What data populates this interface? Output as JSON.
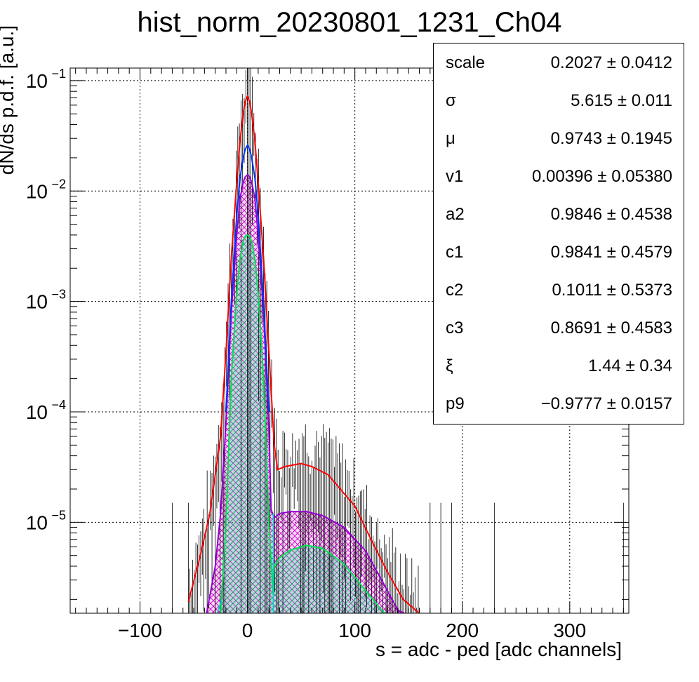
{
  "chart_data": {
    "type": "line",
    "title": "hist_norm_20230801_1231_Ch04",
    "xlabel": "s = adc - ped [adc channels]",
    "ylabel": "dN/ds p.d.f. [a.u.]",
    "xlim": [
      -165,
      355
    ],
    "ylim": [
      1.5e-06,
      0.13
    ],
    "yscale": "log",
    "grid": true,
    "x_ticks": [
      -100,
      0,
      100,
      200,
      300
    ],
    "x_tick_labels": [
      "−100",
      "0",
      "100",
      "200",
      "300"
    ],
    "y_ticks": [
      1e-05,
      0.0001,
      0.001,
      0.01,
      0.1
    ],
    "y_tick_labels": [
      {
        "base": "10",
        "exp": "−5"
      },
      {
        "base": "10",
        "exp": "−4"
      },
      {
        "base": "10",
        "exp": "−3"
      },
      {
        "base": "10",
        "exp": "−2"
      },
      {
        "base": "10",
        "exp": "−1"
      }
    ],
    "series": [
      {
        "color": "#ff0000",
        "fill": "none",
        "x": [
          -55,
          -45,
          -35,
          -25,
          -20,
          -15,
          -10,
          -7,
          -4,
          -2,
          0,
          2,
          4,
          7,
          10,
          15,
          20,
          25,
          28,
          35,
          50,
          60,
          75,
          100,
          115,
          130,
          145,
          160
        ],
        "y": [
          1.9e-06,
          4.5e-06,
          1.2e-05,
          6e-05,
          0.00035,
          0.0025,
          0.012,
          0.028,
          0.05,
          0.065,
          0.072,
          0.065,
          0.05,
          0.028,
          0.012,
          0.0025,
          0.00035,
          5e-05,
          3e-05,
          3.2e-05,
          3.4e-05,
          3.2e-05,
          2.7e-05,
          1.4e-05,
          7e-06,
          3.6e-06,
          2e-06,
          1.5e-06
        ]
      },
      {
        "color": "#9400d3",
        "fill": "#cc66cc",
        "x": [
          -38,
          -30,
          -25,
          -20,
          -15,
          -10,
          -7,
          -4,
          -2,
          0,
          2,
          4,
          7,
          10,
          15,
          20,
          22,
          25,
          30,
          40,
          55,
          70,
          90,
          110,
          125,
          140,
          146
        ],
        "y": [
          1.5e-06,
          4e-06,
          1.2e-05,
          8e-05,
          0.0008,
          0.004,
          0.0085,
          0.012,
          0.0135,
          0.014,
          0.0135,
          0.012,
          0.0085,
          0.004,
          0.0008,
          7e-05,
          1.3e-05,
          1.1e-05,
          1.2e-05,
          1.25e-05,
          1.25e-05,
          1.15e-05,
          9e-06,
          5.5e-06,
          3e-06,
          1.6e-06,
          1.5e-06
        ]
      },
      {
        "color": "#0033ff",
        "fill": "none",
        "x": [
          -20,
          -15,
          -10,
          -7,
          -4,
          -2,
          0,
          2,
          4,
          7,
          10,
          15,
          20
        ],
        "y": [
          0.0001,
          0.001,
          0.006,
          0.013,
          0.02,
          0.024,
          0.026,
          0.024,
          0.02,
          0.013,
          0.006,
          0.001,
          0.0001
        ]
      },
      {
        "color": "#00e050",
        "fill": "#33cc99",
        "x": [
          -25,
          -20,
          -15,
          -10,
          -7,
          -4,
          -2,
          0,
          2,
          4,
          7,
          10,
          15,
          20,
          24,
          25,
          30,
          40,
          55,
          70,
          90,
          110,
          125,
          128
        ],
        "y": [
          1.5e-06,
          1e-05,
          0.0002,
          0.0012,
          0.0024,
          0.0035,
          0.0039,
          0.004,
          0.0039,
          0.0035,
          0.0024,
          0.0012,
          0.0002,
          1e-05,
          2.2e-06,
          4e-06,
          4.8e-06,
          5.6e-06,
          6.2e-06,
          5.8e-06,
          4.2e-06,
          2.4e-06,
          1.6e-06,
          1.5e-06
        ]
      }
    ]
  },
  "stats": [
    {
      "name": "scale",
      "value": "0.2027 ± 0.0412"
    },
    {
      "name": "σ",
      "value": "5.615 ± 0.011"
    },
    {
      "name": "μ",
      "value": "0.9743 ± 0.1945"
    },
    {
      "name": "v1",
      "value": "0.00396 ± 0.05380"
    },
    {
      "name": "a2",
      "value": "0.9846 ± 0.4538"
    },
    {
      "name": "c1",
      "value": "0.9841 ± 0.4579"
    },
    {
      "name": "c2",
      "value": "0.1011 ± 0.5373"
    },
    {
      "name": "c3",
      "value": "0.8691 ± 0.4583"
    },
    {
      "name": "ξ",
      "value": "1.44 ± 0.34"
    },
    {
      "name": "p9",
      "value": "−0.9777 ± 0.0157"
    }
  ]
}
